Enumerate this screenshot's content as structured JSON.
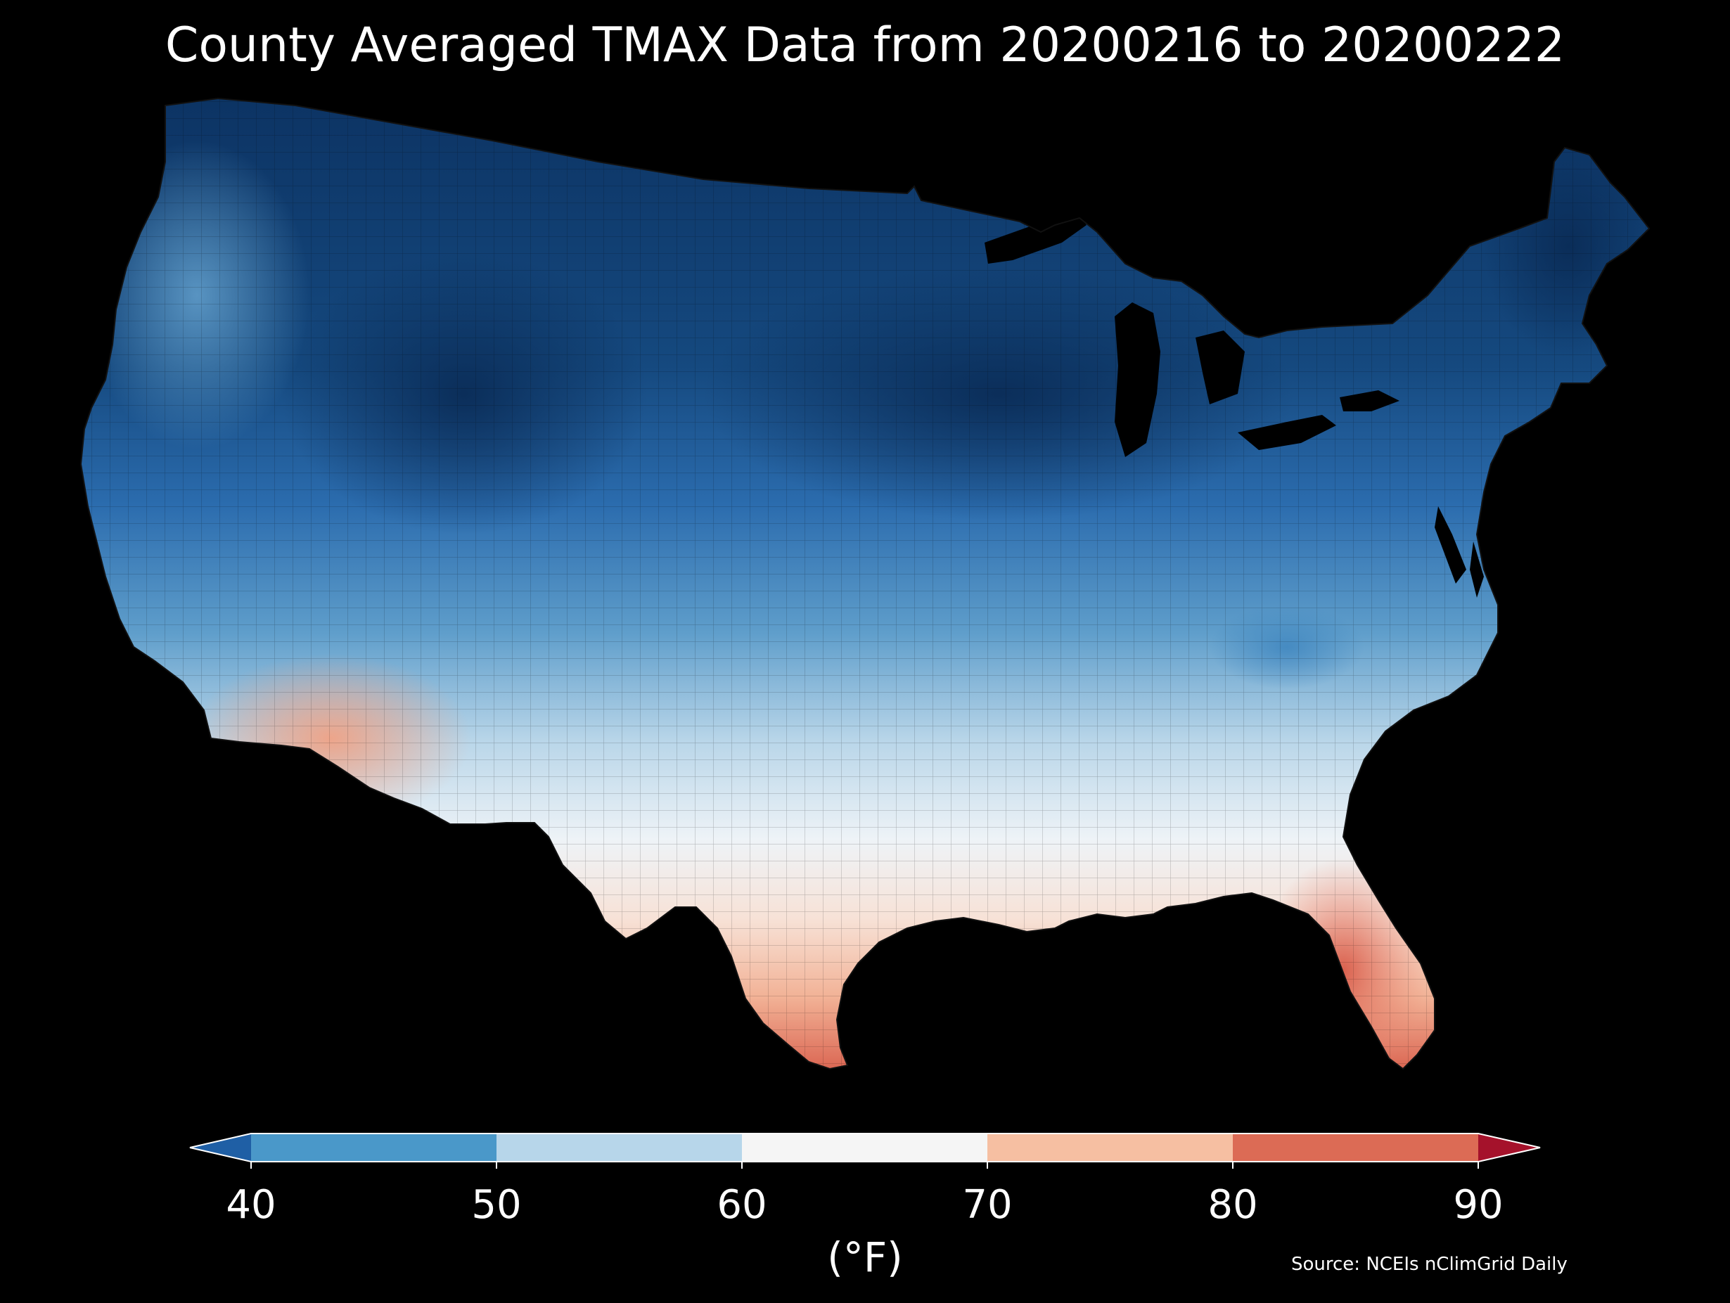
{
  "title": "County Averaged TMAX Data from 20200216 to 20200222",
  "source": "Source: NCEIs nClimGrid Daily",
  "colorbar": {
    "unit_label": "(°F)",
    "ticks": [
      "40",
      "50",
      "60",
      "70",
      "80",
      "90"
    ],
    "bins": [
      {
        "range": "<40",
        "color": "#1f5fa5"
      },
      {
        "range": "40-50",
        "color": "#4a98c9"
      },
      {
        "range": "50-60",
        "color": "#b7d6ea"
      },
      {
        "range": "60-70",
        "color": "#f5f5f5"
      },
      {
        "range": "70-80",
        "color": "#f6bfa2"
      },
      {
        "range": "80-90",
        "color": "#dc6b55"
      },
      {
        "range": ">90",
        "color": "#a5122b"
      }
    ]
  },
  "map": {
    "region": "Contiguous United States",
    "variable": "TMAX",
    "background_color": "#000000"
  }
}
